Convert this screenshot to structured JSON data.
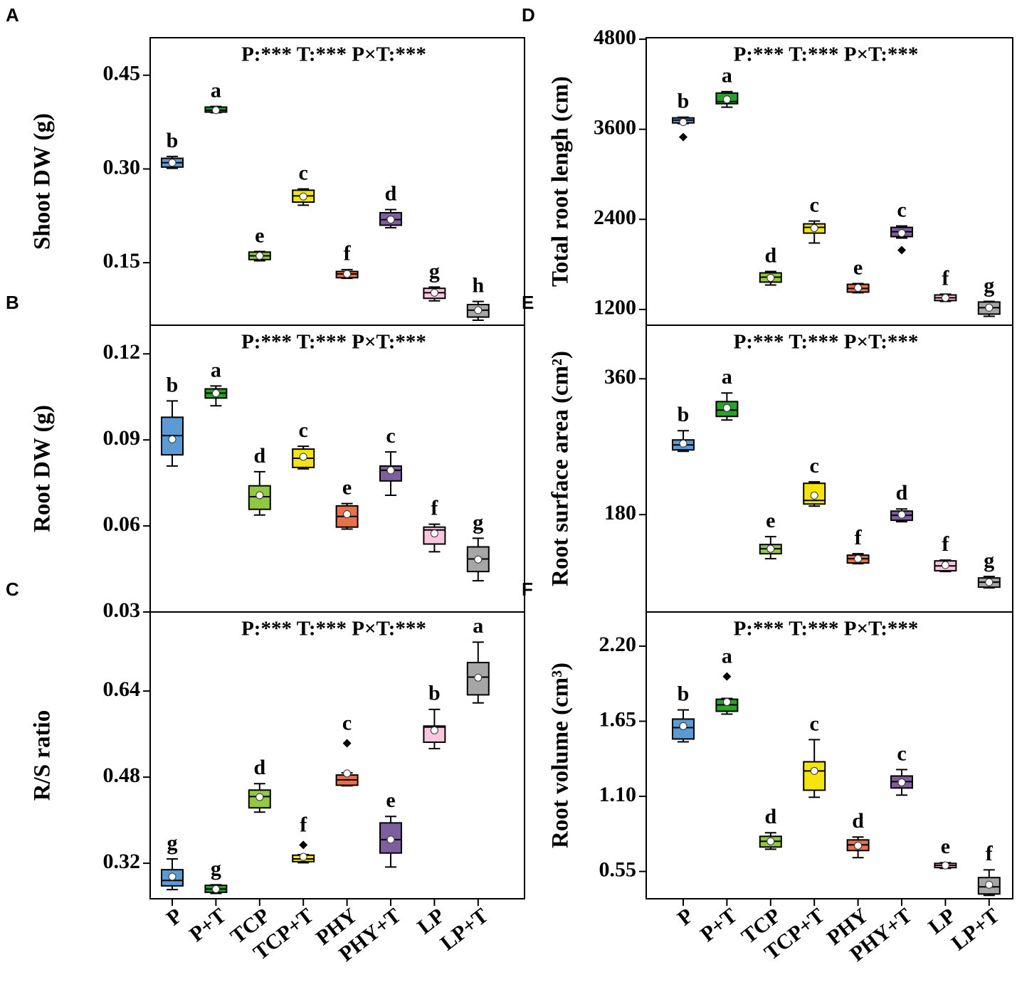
{
  "chart_data": [
    {
      "type": "box",
      "panel": "A",
      "annotation": "P:*** T:*** P×T:***",
      "y_label": "Shoot DW (g)",
      "ylim": [
        0.05,
        0.51
      ],
      "yticks": [
        0.45,
        {
          "value": 0.3,
          "label": "0.30"
        },
        0.15
      ],
      "boxes": [
        {
          "color": "#5b9bd5",
          "min": 0.301,
          "q1": 0.303,
          "median": 0.31,
          "q3": 0.317,
          "max": 0.32,
          "mean": 0.31,
          "outliers": [],
          "letter": "b"
        },
        {
          "color": "#2ca02c",
          "min": 0.39,
          "q1": 0.391,
          "median": 0.394,
          "q3": 0.399,
          "max": 0.4,
          "mean": 0.394,
          "outliers": [],
          "letter": "a"
        },
        {
          "color": "#92c83e",
          "min": 0.153,
          "q1": 0.155,
          "median": 0.161,
          "q3": 0.167,
          "max": 0.168,
          "mean": 0.161,
          "outliers": [],
          "letter": "e"
        },
        {
          "color": "#f5e50a",
          "min": 0.242,
          "q1": 0.247,
          "median": 0.257,
          "q3": 0.266,
          "max": 0.268,
          "mean": 0.256,
          "outliers": [],
          "letter": "c"
        },
        {
          "color": "#e8704a",
          "min": 0.125,
          "q1": 0.126,
          "median": 0.132,
          "q3": 0.136,
          "max": 0.139,
          "mean": 0.132,
          "outliers": [],
          "letter": "f"
        },
        {
          "color": "#7e5f9e",
          "min": 0.206,
          "q1": 0.21,
          "median": 0.219,
          "q3": 0.23,
          "max": 0.235,
          "mean": 0.219,
          "outliers": [],
          "letter": "d"
        },
        {
          "color": "#f9c6e0",
          "min": 0.089,
          "q1": 0.093,
          "median": 0.102,
          "q3": 0.109,
          "max": 0.111,
          "mean": 0.102,
          "outliers": [],
          "letter": "g"
        },
        {
          "color": "#a6a6a6",
          "min": 0.058,
          "q1": 0.063,
          "median": 0.074,
          "q3": 0.083,
          "max": 0.088,
          "mean": 0.074,
          "outliers": [],
          "letter": "h"
        }
      ]
    },
    {
      "type": "box",
      "panel": "B",
      "annotation": "P:*** T:*** P×T:***",
      "y_label": "Root DW (g)",
      "ylim": [
        0.03,
        0.13
      ],
      "yticks": [
        0.12,
        0.09,
        0.06,
        0.03
      ],
      "boxes": [
        {
          "color": "#5b9bd5",
          "min": 0.0809,
          "q1": 0.0848,
          "median": 0.0915,
          "q3": 0.0979,
          "max": 0.1036,
          "mean": 0.0902,
          "outliers": [],
          "letter": "b"
        },
        {
          "color": "#2ca02c",
          "min": 0.1019,
          "q1": 0.1046,
          "median": 0.1063,
          "q3": 0.1078,
          "max": 0.1088,
          "mean": 0.1063,
          "outliers": [],
          "letter": "a"
        },
        {
          "color": "#92c83e",
          "min": 0.0638,
          "q1": 0.0658,
          "median": 0.0702,
          "q3": 0.074,
          "max": 0.0789,
          "mean": 0.0707,
          "outliers": [],
          "letter": "d"
        },
        {
          "color": "#f5e50a",
          "min": 0.0799,
          "q1": 0.0804,
          "median": 0.0836,
          "q3": 0.0868,
          "max": 0.0878,
          "mean": 0.0841,
          "outliers": [],
          "letter": "c"
        },
        {
          "color": "#e8704a",
          "min": 0.0589,
          "q1": 0.0596,
          "median": 0.0633,
          "q3": 0.067,
          "max": 0.0678,
          "mean": 0.0641,
          "outliers": [],
          "letter": "e"
        },
        {
          "color": "#7e5f9e",
          "min": 0.0707,
          "q1": 0.0757,
          "median": 0.0794,
          "q3": 0.0809,
          "max": 0.0858,
          "mean": 0.0794,
          "outliers": [],
          "letter": "c"
        },
        {
          "color": "#f9c6e0",
          "min": 0.051,
          "q1": 0.0537,
          "median": 0.0586,
          "q3": 0.0596,
          "max": 0.0606,
          "mean": 0.0574,
          "outliers": [],
          "letter": "f"
        },
        {
          "color": "#a6a6a6",
          "min": 0.0409,
          "q1": 0.0441,
          "median": 0.0485,
          "q3": 0.0527,
          "max": 0.0557,
          "mean": 0.0483,
          "outliers": [],
          "letter": "g"
        }
      ]
    },
    {
      "type": "box",
      "panel": "C",
      "annotation": "P:*** T:*** P×T:***",
      "y_label": "R/S ratio",
      "ylim": [
        0.254,
        0.787
      ],
      "yticks": [
        0.64,
        0.48,
        0.32
      ],
      "categories": [
        "P",
        "P+T",
        "TCP",
        "TCP+T",
        "PHY",
        "PHY+T",
        "LP",
        "LP+T"
      ],
      "boxes": [
        {
          "color": "#5b9bd5",
          "min": 0.271,
          "q1": 0.278,
          "median": 0.288,
          "q3": 0.308,
          "max": 0.328,
          "mean": 0.295,
          "outliers": [],
          "letter": "g"
        },
        {
          "color": "#2ca02c",
          "min": 0.264,
          "q1": 0.266,
          "median": 0.272,
          "q3": 0.279,
          "max": 0.28,
          "mean": 0.272,
          "outliers": [],
          "letter": "g"
        },
        {
          "color": "#92c83e",
          "min": 0.415,
          "q1": 0.423,
          "median": 0.444,
          "q3": 0.456,
          "max": 0.468,
          "mean": 0.443,
          "outliers": [],
          "letter": "d"
        },
        {
          "color": "#f5e50a",
          "min": 0.321,
          "q1": 0.323,
          "median": 0.328,
          "q3": 0.335,
          "max": 0.336,
          "mean": 0.332,
          "outliers": [
            0.354
          ],
          "letter": "f"
        },
        {
          "color": "#e8704a",
          "min": 0.464,
          "q1": 0.465,
          "median": 0.475,
          "q3": 0.484,
          "max": 0.488,
          "mean": 0.487,
          "outliers": [
            0.543
          ],
          "letter": "c"
        },
        {
          "color": "#7e5f9e",
          "min": 0.313,
          "q1": 0.339,
          "median": 0.364,
          "q3": 0.395,
          "max": 0.407,
          "mean": 0.364,
          "outliers": [],
          "letter": "e"
        },
        {
          "color": "#f9c6e0",
          "min": 0.533,
          "q1": 0.545,
          "median": 0.573,
          "q3": 0.575,
          "max": 0.606,
          "mean": 0.567,
          "outliers": [],
          "letter": "b"
        },
        {
          "color": "#a6a6a6",
          "min": 0.618,
          "q1": 0.633,
          "median": 0.666,
          "q3": 0.693,
          "max": 0.731,
          "mean": 0.665,
          "outliers": [],
          "letter": "a"
        }
      ]
    },
    {
      "type": "box",
      "panel": "D",
      "annotation": "P:*** T:*** P×T:***",
      "y_label": "Total root lengh (cm)",
      "ylim": [
        990,
        4820
      ],
      "yticks": [
        4800,
        3600,
        2400,
        1200
      ],
      "boxes": [
        {
          "color": "#5b9bd5",
          "min": 3676,
          "q1": 3685,
          "median": 3723,
          "q3": 3752,
          "max": 3761,
          "mean": 3695,
          "outliers": [
            3496
          ],
          "letter": "b"
        },
        {
          "color": "#2ca02c",
          "min": 3894,
          "q1": 3941,
          "median": 3969,
          "q3": 4083,
          "max": 4102,
          "mean": 3998,
          "outliers": [],
          "letter": "a"
        },
        {
          "color": "#92c83e",
          "min": 1526,
          "q1": 1564,
          "median": 1630,
          "q3": 1687,
          "max": 1706,
          "mean": 1621,
          "outliers": [],
          "letter": "d"
        },
        {
          "color": "#f5e50a",
          "min": 2085,
          "q1": 2217,
          "median": 2293,
          "q3": 2340,
          "max": 2378,
          "mean": 2284,
          "outliers": [],
          "letter": "c"
        },
        {
          "color": "#e8704a",
          "min": 1422,
          "q1": 1431,
          "median": 1479,
          "q3": 1535,
          "max": 1545,
          "mean": 1488,
          "outliers": [],
          "letter": "e"
        },
        {
          "color": "#7e5f9e",
          "min": 2151,
          "q1": 2170,
          "median": 2236,
          "q3": 2293,
          "max": 2312,
          "mean": 2217,
          "outliers": [
            1990
          ],
          "letter": "c"
        },
        {
          "color": "#f9c6e0",
          "min": 1308,
          "q1": 1318,
          "median": 1355,
          "q3": 1393,
          "max": 1403,
          "mean": 1355,
          "outliers": [],
          "letter": "f"
        },
        {
          "color": "#a6a6a6",
          "min": 1109,
          "q1": 1138,
          "median": 1223,
          "q3": 1299,
          "max": 1308,
          "mean": 1223,
          "outliers": [],
          "letter": "g"
        }
      ]
    },
    {
      "type": "box",
      "panel": "E",
      "annotation": "P:*** T:*** P×T:***",
      "y_label": "Root surface area (cm²)",
      "ylim": [
        51,
        431
      ],
      "yticks": [
        360,
        180
      ],
      "boxes": [
        {
          "color": "#5b9bd5",
          "min": 263.9,
          "q1": 265.8,
          "median": 272.4,
          "q3": 279.0,
          "max": 291.2,
          "mean": 274.2,
          "outliers": [],
          "letter": "b"
        },
        {
          "color": "#2ca02c",
          "min": 305.3,
          "q1": 310.1,
          "median": 318.5,
          "q3": 329.8,
          "max": 341.2,
          "mean": 321.4,
          "outliers": [],
          "letter": "a"
        },
        {
          "color": "#92c83e",
          "min": 121.6,
          "q1": 128.2,
          "median": 134.8,
          "q3": 140.4,
          "max": 150.8,
          "mean": 134.8,
          "outliers": [],
          "letter": "e"
        },
        {
          "color": "#f5e50a",
          "min": 191.3,
          "q1": 194.1,
          "median": 198.8,
          "q3": 221.5,
          "max": 223.4,
          "mean": 205.4,
          "outliers": [],
          "letter": "c"
        },
        {
          "color": "#e8704a",
          "min": 115.0,
          "q1": 115.9,
          "median": 121.6,
          "q3": 126.3,
          "max": 128.2,
          "mean": 121.6,
          "outliers": [],
          "letter": "f"
        },
        {
          "color": "#7e5f9e",
          "min": 170.6,
          "q1": 172.5,
          "median": 179.1,
          "q3": 184.7,
          "max": 187.5,
          "mean": 180.0,
          "outliers": [],
          "letter": "d"
        },
        {
          "color": "#f9c6e0",
          "min": 104.6,
          "q1": 105.6,
          "median": 112.1,
          "q3": 118.7,
          "max": 119.7,
          "mean": 113.1,
          "outliers": [],
          "letter": "f"
        },
        {
          "color": "#a6a6a6",
          "min": 82.9,
          "q1": 83.9,
          "median": 90.5,
          "q3": 96.1,
          "max": 98.0,
          "mean": 90.5,
          "outliers": [],
          "letter": "g"
        }
      ]
    },
    {
      "type": "box",
      "panel": "F",
      "annotation": "P:*** T:*** P×T:***",
      "y_label": "Root volume (cm³)",
      "ylim": [
        0.35,
        2.45
      ],
      "yticks": [
        {
          "value": 2.2,
          "label": "2.20"
        },
        1.65,
        {
          "value": 1.1,
          "label": "1.10"
        },
        0.55
      ],
      "categories": [
        "P",
        "P+T",
        "TCP",
        "TCP+T",
        "PHY",
        "PHY+T",
        "LP",
        "LP+T"
      ],
      "boxes": [
        {
          "color": "#5b9bd5",
          "min": 1.499,
          "q1": 1.52,
          "median": 1.603,
          "q3": 1.666,
          "max": 1.733,
          "mean": 1.614,
          "outliers": [],
          "letter": "b"
        },
        {
          "color": "#2ca02c",
          "min": 1.702,
          "q1": 1.723,
          "median": 1.77,
          "q3": 1.811,
          "max": 1.817,
          "mean": 1.791,
          "outliers": [
            1.978
          ],
          "letter": "a"
        },
        {
          "color": "#92c83e",
          "min": 0.713,
          "q1": 0.729,
          "median": 0.771,
          "q3": 0.807,
          "max": 0.833,
          "mean": 0.771,
          "outliers": [],
          "letter": "d"
        },
        {
          "color": "#f5e50a",
          "min": 1.093,
          "q1": 1.145,
          "median": 1.286,
          "q3": 1.353,
          "max": 1.515,
          "mean": 1.286,
          "outliers": [],
          "letter": "c"
        },
        {
          "color": "#e8704a",
          "min": 0.651,
          "q1": 0.703,
          "median": 0.745,
          "q3": 0.781,
          "max": 0.802,
          "mean": 0.739,
          "outliers": [],
          "letter": "d"
        },
        {
          "color": "#7e5f9e",
          "min": 1.109,
          "q1": 1.161,
          "median": 1.208,
          "q3": 1.249,
          "max": 1.296,
          "mean": 1.202,
          "outliers": [],
          "letter": "c"
        },
        {
          "color": "#f9c6e0",
          "min": 0.573,
          "q1": 0.578,
          "median": 0.594,
          "q3": 0.609,
          "max": 0.614,
          "mean": 0.594,
          "outliers": [],
          "letter": "e"
        },
        {
          "color": "#a6a6a6",
          "min": 0.375,
          "q1": 0.385,
          "median": 0.437,
          "q3": 0.505,
          "max": 0.562,
          "mean": 0.453,
          "outliers": [],
          "letter": "f"
        }
      ]
    }
  ]
}
